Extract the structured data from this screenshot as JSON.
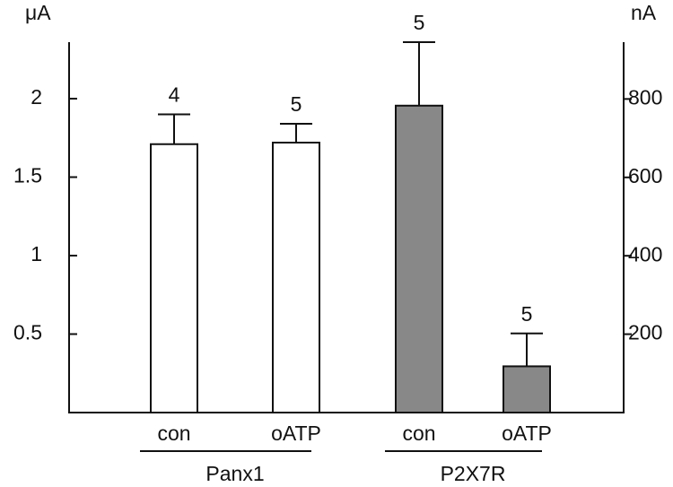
{
  "chart_data": {
    "type": "bar",
    "y_label": "μA",
    "y2_label": "nA",
    "categories": [
      "con",
      "oATP",
      "con",
      "oATP"
    ],
    "groups": [
      {
        "label": "Panx1",
        "categories": [
          0,
          1
        ]
      },
      {
        "label": "P2X7R",
        "categories": [
          2,
          3
        ]
      }
    ],
    "n_labels": [
      "4",
      "5",
      "5",
      "5"
    ],
    "series": [
      {
        "color": "#ffffff",
        "axis": "y",
        "values": [
          1.71,
          1.72,
          null,
          null
        ],
        "errors": [
          0.19,
          0.12,
          null,
          null
        ]
      },
      {
        "color": "#888888",
        "axis": "y2",
        "values": [
          null,
          null,
          783,
          118
        ],
        "errors": [
          null,
          null,
          162,
          84
        ]
      }
    ],
    "ylim": [
      0,
      2.36
    ],
    "yticks": [
      0.5,
      1,
      1.5,
      2
    ],
    "y2lim": [
      0,
      945
    ],
    "y2ticks": [
      200,
      400,
      600,
      800
    ]
  }
}
